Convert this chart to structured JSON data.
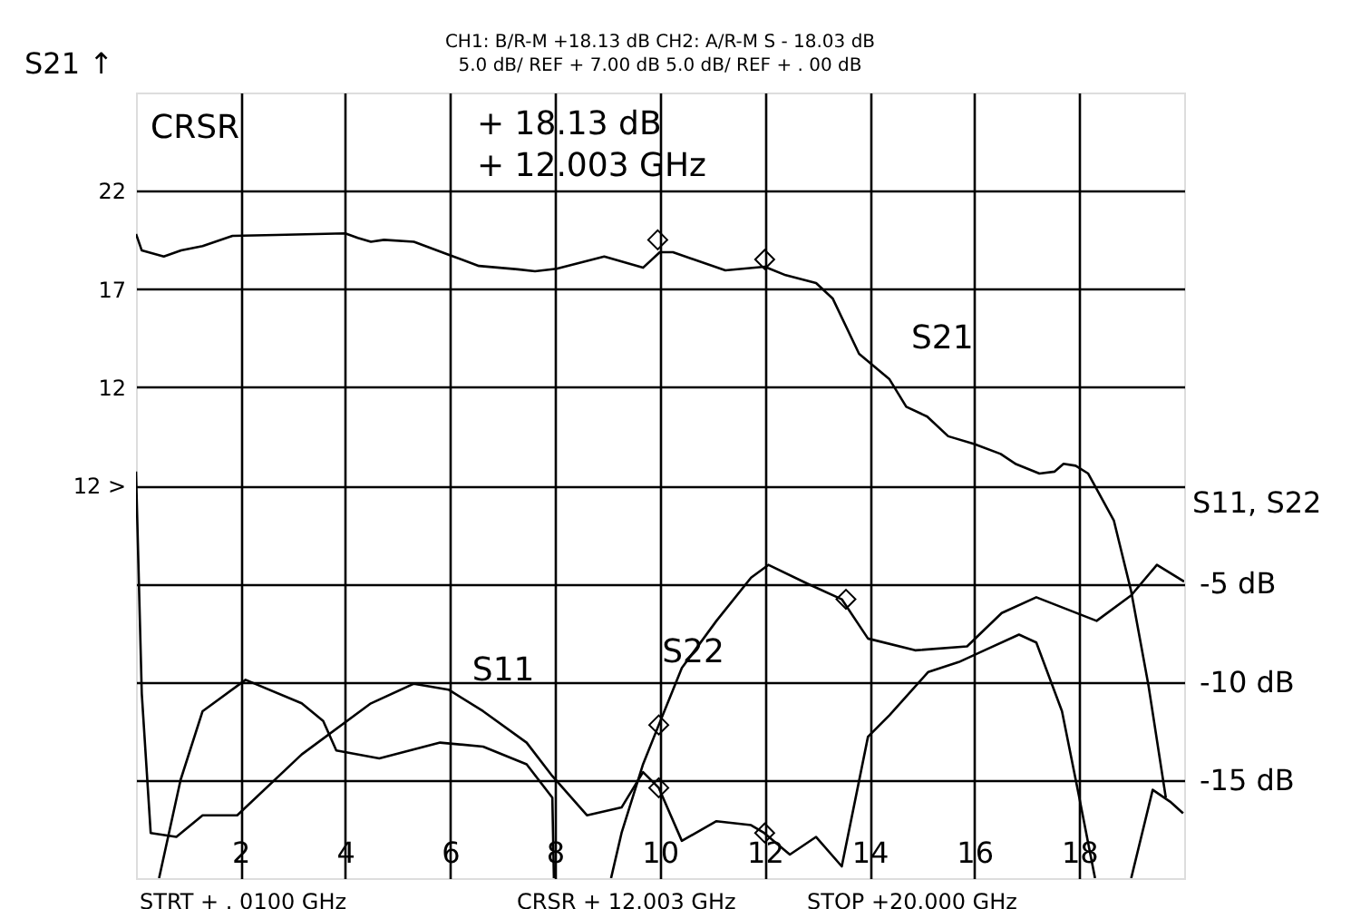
{
  "chart_data": {
    "type": "line",
    "title": "CH1:  B/R-M          +18.13 dB   CH2: A/R-M S     - 18.03  dB",
    "subtitle": "5.0 dB/  REF          +  7.00 dB      5.0 dB/  REF  +     . 00 dB",
    "ylabel": "S21 ↑",
    "y2label": "S11, S22",
    "xlim": [
      0.01,
      20
    ],
    "xticks": [
      2,
      4,
      6,
      8,
      10,
      12,
      14,
      16,
      18
    ],
    "ylim": [
      -13,
      27
    ],
    "yticks": [
      {
        "value": -8,
        "label": null
      },
      {
        "value": -3,
        "label": null
      },
      {
        "value": 2,
        "label": null
      },
      {
        "value": 7,
        "label": "12        >"
      },
      12,
      17,
      22
    ],
    "y2lim": [
      -20,
      20
    ],
    "y2ticks": [
      {
        "value": -15,
        "label": "-15 dB"
      },
      {
        "value": -10,
        "label": "-10 dB"
      },
      {
        "value": -5,
        "label": "-5 dB"
      }
    ],
    "grid": true,
    "line_style": "solid",
    "series": [
      {
        "name": "S21",
        "color": "#000000",
        "x": [
          0.01,
          0.12,
          0.54,
          0.87,
          1.28,
          1.85,
          2.68,
          4.0,
          4.24,
          4.49,
          4.74,
          5.31,
          5.97,
          6.55,
          7.29,
          7.62,
          8.03,
          8.94,
          9.68,
          10.0,
          10.25,
          11.25,
          12.0,
          12.4,
          12.98,
          13.3,
          13.8,
          14.38,
          14.7,
          15.1,
          15.5,
          16.0,
          16.5,
          16.78,
          17.24,
          17.53,
          17.7,
          17.93,
          18.17,
          18.66,
          18.99,
          19.32,
          19.65
        ],
        "values": [
          19.8,
          18.96,
          18.65,
          18.96,
          19.18,
          19.7,
          19.75,
          19.83,
          19.6,
          19.4,
          19.5,
          19.4,
          18.74,
          18.17,
          18.0,
          17.9,
          18.03,
          18.65,
          18.08,
          18.87,
          18.87,
          17.95,
          18.13,
          17.7,
          17.3,
          16.5,
          13.7,
          12.4,
          11.0,
          10.5,
          9.5,
          9.1,
          8.6,
          8.1,
          7.6,
          7.7,
          8.1,
          8.0,
          7.6,
          5.2,
          1.6,
          -3.2,
          -8.9
        ]
      },
      {
        "name": "S11",
        "color": "#000000",
        "axis": "y2",
        "x": [
          0.01,
          0.12,
          0.29,
          0.78,
          1.28,
          1.94,
          3.17,
          4.49,
          5.31,
          5.97,
          6.63,
          7.46,
          7.95,
          8.61,
          9.27,
          9.68,
          9.98,
          10.42,
          11.08,
          11.74,
          11.99,
          12.48,
          12.98,
          13.47,
          13.97,
          14.38,
          15.12,
          15.7,
          16.19,
          16.85,
          17.18,
          17.67,
          18.0,
          18.3,
          18.5,
          18.99,
          19.4,
          19.73,
          19.98
        ],
        "values": [
          0.7,
          -10.6,
          -17.7,
          -17.9,
          -16.8,
          -16.8,
          -13.7,
          -11.1,
          -10.1,
          -10.4,
          -11.5,
          -13.1,
          -14.8,
          -16.8,
          -16.4,
          -14.6,
          -15.4,
          -18.1,
          -17.1,
          -17.3,
          -17.7,
          -18.8,
          -17.9,
          -19.4,
          -12.8,
          -11.7,
          -9.5,
          -9.0,
          -8.4,
          -7.6,
          -8.0,
          -11.5,
          -15.9,
          -20.0,
          null,
          -20.0,
          -15.5,
          -16.1,
          -16.7
        ]
      },
      {
        "name": "S22",
        "color": "#000000",
        "axis": "y2",
        "x": [
          0.45,
          0.86,
          1.28,
          2.1,
          3.17,
          3.58,
          3.83,
          4.65,
          5.81,
          6.63,
          7.46,
          7.95,
          7.98,
          8.5,
          9.07,
          9.27,
          9.68,
          9.98,
          10.42,
          11.08,
          11.74,
          12.07,
          12.81,
          13.47,
          13.97,
          14.87,
          15.86,
          16.52,
          17.18,
          18.33,
          18.99,
          19.48,
          20.0
        ],
        "values": [
          -20.0,
          -15.0,
          -11.5,
          -9.9,
          -11.1,
          -12.0,
          -13.5,
          -13.9,
          -13.1,
          -13.3,
          -14.2,
          -15.9,
          -20.0,
          null,
          -20.0,
          -17.7,
          -14.2,
          -12.2,
          -9.3,
          -6.9,
          -4.7,
          -4.05,
          -5.0,
          -5.8,
          -7.8,
          -8.4,
          -8.2,
          -6.5,
          -5.7,
          -6.9,
          -5.6,
          -4.05,
          -4.9
        ]
      },
      {
        "type": "scatter",
        "marker": "diamond",
        "color": "#000000",
        "x": [
          9.96,
          12.0
        ],
        "values": [
          19.5,
          18.5
        ]
      },
      {
        "type": "scatter",
        "marker": "diamond",
        "color": "#000000",
        "axis": "y2",
        "x": [
          9.98,
          12.0,
          9.98,
          13.55
        ],
        "values": [
          -15.4,
          -17.7,
          -12.2,
          -5.8
        ]
      }
    ],
    "annotations": [
      "CRSR",
      "+ 18.13  dB",
      "+ 12.003 GHz",
      "STRT    +   . 0100 GHz",
      "CRSR    + 12.003 GHz",
      "STOP    +20.000 GHz"
    ]
  }
}
